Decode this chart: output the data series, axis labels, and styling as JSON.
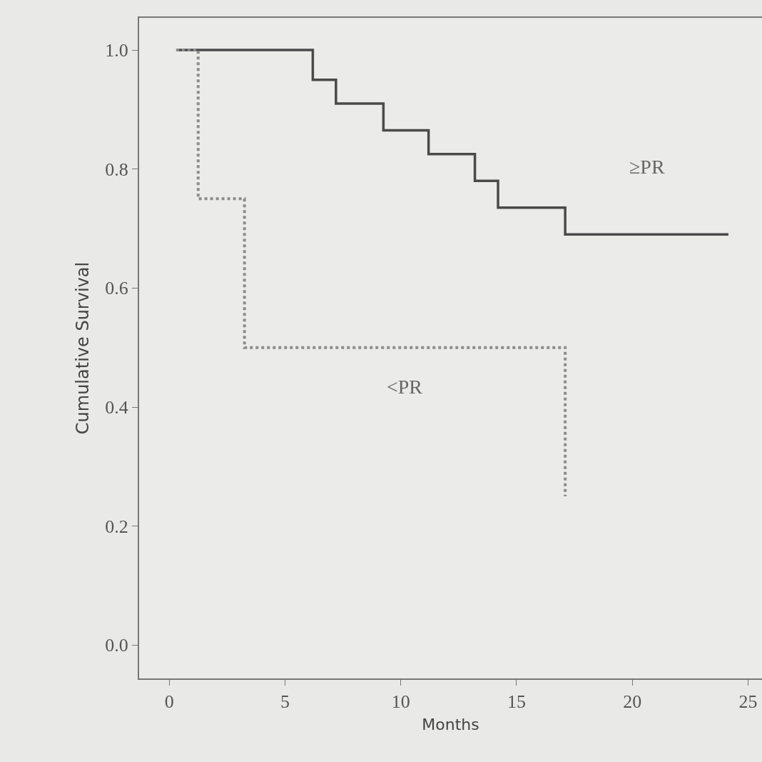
{
  "chart_data": {
    "type": "step",
    "xlabel": "Months",
    "ylabel": "Cumulative Survival",
    "xlim": [
      -1.3,
      25.6
    ],
    "xticks": [
      0,
      5,
      10,
      15,
      20,
      25
    ],
    "ylim": [
      -0.056,
      1.054
    ],
    "yticks": [
      {
        "value": 0,
        "label": "0.0"
      },
      0.2,
      0.4,
      0.6,
      0.8,
      {
        "value": 1,
        "label": "1.0"
      }
    ],
    "grid": false,
    "legend": false,
    "marker": "none",
    "series": [
      {
        "name": "≥PR",
        "color": "#4a4a4a",
        "line_style": "solid",
        "x": [
          0.3,
          6.2,
          7.2,
          9.25,
          11.2,
          13.2,
          14.2,
          17.1,
          24.15
        ],
        "values": [
          1,
          0.95,
          0.91,
          0.865,
          0.825,
          0.78,
          0.735,
          0.69,
          0.69
        ]
      },
      {
        "name": "<PR",
        "color": "#8c8c8c",
        "line_style": "dotted",
        "x": [
          0.3,
          1.25,
          3.25,
          17.1
        ],
        "values": [
          1,
          0.75,
          0.5,
          0.25
        ]
      }
    ]
  }
}
